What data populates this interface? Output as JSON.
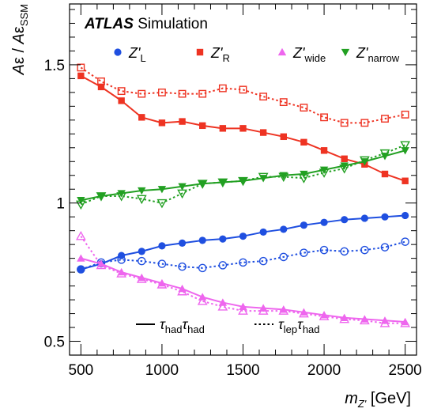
{
  "chart_data": {
    "type": "line",
    "atlas_label": "ATLAS",
    "atlas_sublabel": "Simulation",
    "xlabel": {
      "main": "m",
      "sub": "Z'",
      "unit": "[GeV]"
    },
    "ylabel": {
      "a1": "A",
      "e1": "ε",
      "sep": " / ",
      "a2": "A",
      "e2": "ε",
      "sub": "SSM"
    },
    "xlim": [
      430,
      2570
    ],
    "ylim": [
      0.45,
      1.72
    ],
    "xticks": [
      500,
      1000,
      1500,
      2000,
      2500
    ],
    "yticks": [
      0.5,
      1,
      1.5
    ],
    "x": [
      500,
      625,
      750,
      875,
      1000,
      1125,
      1250,
      1375,
      1500,
      1625,
      1750,
      1875,
      2000,
      2125,
      2250,
      2375,
      2500
    ],
    "series": [
      {
        "name": "Z'_L",
        "label_main": "Z'",
        "label_sub": "L",
        "color": "#1f4fe0",
        "marker": "circle",
        "channel": "τhad τhad",
        "style": "solid",
        "values": [
          0.76,
          0.78,
          0.81,
          0.825,
          0.845,
          0.855,
          0.865,
          0.87,
          0.88,
          0.895,
          0.905,
          0.92,
          0.93,
          0.94,
          0.945,
          0.95,
          0.955
        ]
      },
      {
        "name": "Z'_L",
        "color": "#1f4fe0",
        "marker": "circle",
        "channel": "τlep τhad",
        "style": "dotted",
        "values": [
          0.76,
          0.785,
          0.795,
          0.79,
          0.78,
          0.77,
          0.765,
          0.775,
          0.785,
          0.79,
          0.805,
          0.82,
          0.83,
          0.825,
          0.83,
          0.84,
          0.86
        ]
      },
      {
        "name": "Z'_R",
        "label_main": "Z'",
        "label_sub": "R",
        "color": "#ee3322",
        "marker": "square",
        "channel": "τhad τhad",
        "style": "solid",
        "values": [
          1.46,
          1.42,
          1.37,
          1.31,
          1.29,
          1.295,
          1.28,
          1.27,
          1.27,
          1.255,
          1.24,
          1.22,
          1.19,
          1.16,
          1.14,
          1.105,
          1.08
        ]
      },
      {
        "name": "Z'_R",
        "color": "#ee3322",
        "marker": "square",
        "channel": "τlep τhad",
        "style": "dotted",
        "values": [
          1.49,
          1.44,
          1.405,
          1.395,
          1.4,
          1.395,
          1.395,
          1.415,
          1.41,
          1.385,
          1.365,
          1.345,
          1.31,
          1.29,
          1.29,
          1.305,
          1.32
        ]
      },
      {
        "name": "Z'_wide",
        "label_main": "Z'",
        "label_sub": "wide",
        "color": "#ee66ee",
        "marker": "triangle-up",
        "channel": "τhad τhad",
        "style": "solid",
        "values": [
          0.8,
          0.78,
          0.75,
          0.73,
          0.71,
          0.69,
          0.66,
          0.64,
          0.625,
          0.62,
          0.615,
          0.605,
          0.595,
          0.585,
          0.58,
          0.575,
          0.57
        ]
      },
      {
        "name": "Z'_wide",
        "color": "#ee66ee",
        "marker": "triangle-up",
        "channel": "τlep τhad",
        "style": "dotted",
        "values": [
          0.88,
          0.775,
          0.745,
          0.725,
          0.705,
          0.68,
          0.645,
          0.625,
          0.61,
          0.61,
          0.61,
          0.6,
          0.59,
          0.58,
          0.575,
          0.565,
          0.565
        ]
      },
      {
        "name": "Z'_narrow",
        "label_main": "Z'",
        "label_sub": "narrow",
        "color": "#22a022",
        "marker": "triangle-down",
        "channel": "τhad τhad",
        "style": "solid",
        "values": [
          1.01,
          1.025,
          1.035,
          1.045,
          1.05,
          1.06,
          1.07,
          1.075,
          1.08,
          1.09,
          1.1,
          1.105,
          1.12,
          1.135,
          1.15,
          1.17,
          1.19
        ]
      },
      {
        "name": "Z'_narrow",
        "color": "#22a022",
        "marker": "triangle-down",
        "channel": "τlep τhad",
        "style": "dotted",
        "values": [
          0.995,
          1.025,
          1.025,
          1.015,
          1.0,
          1.035,
          1.07,
          1.075,
          1.08,
          1.095,
          1.095,
          1.09,
          1.11,
          1.125,
          1.155,
          1.18,
          1.21
        ]
      }
    ],
    "style_legend": [
      {
        "style": "solid",
        "main": "τ",
        "sub1": "had",
        "main2": "τ",
        "sub2": "had"
      },
      {
        "style": "dotted",
        "main": "τ",
        "sub1": "lep",
        "main2": "τ",
        "sub2": "had"
      }
    ],
    "legend_placement": "top",
    "grid": false
  }
}
